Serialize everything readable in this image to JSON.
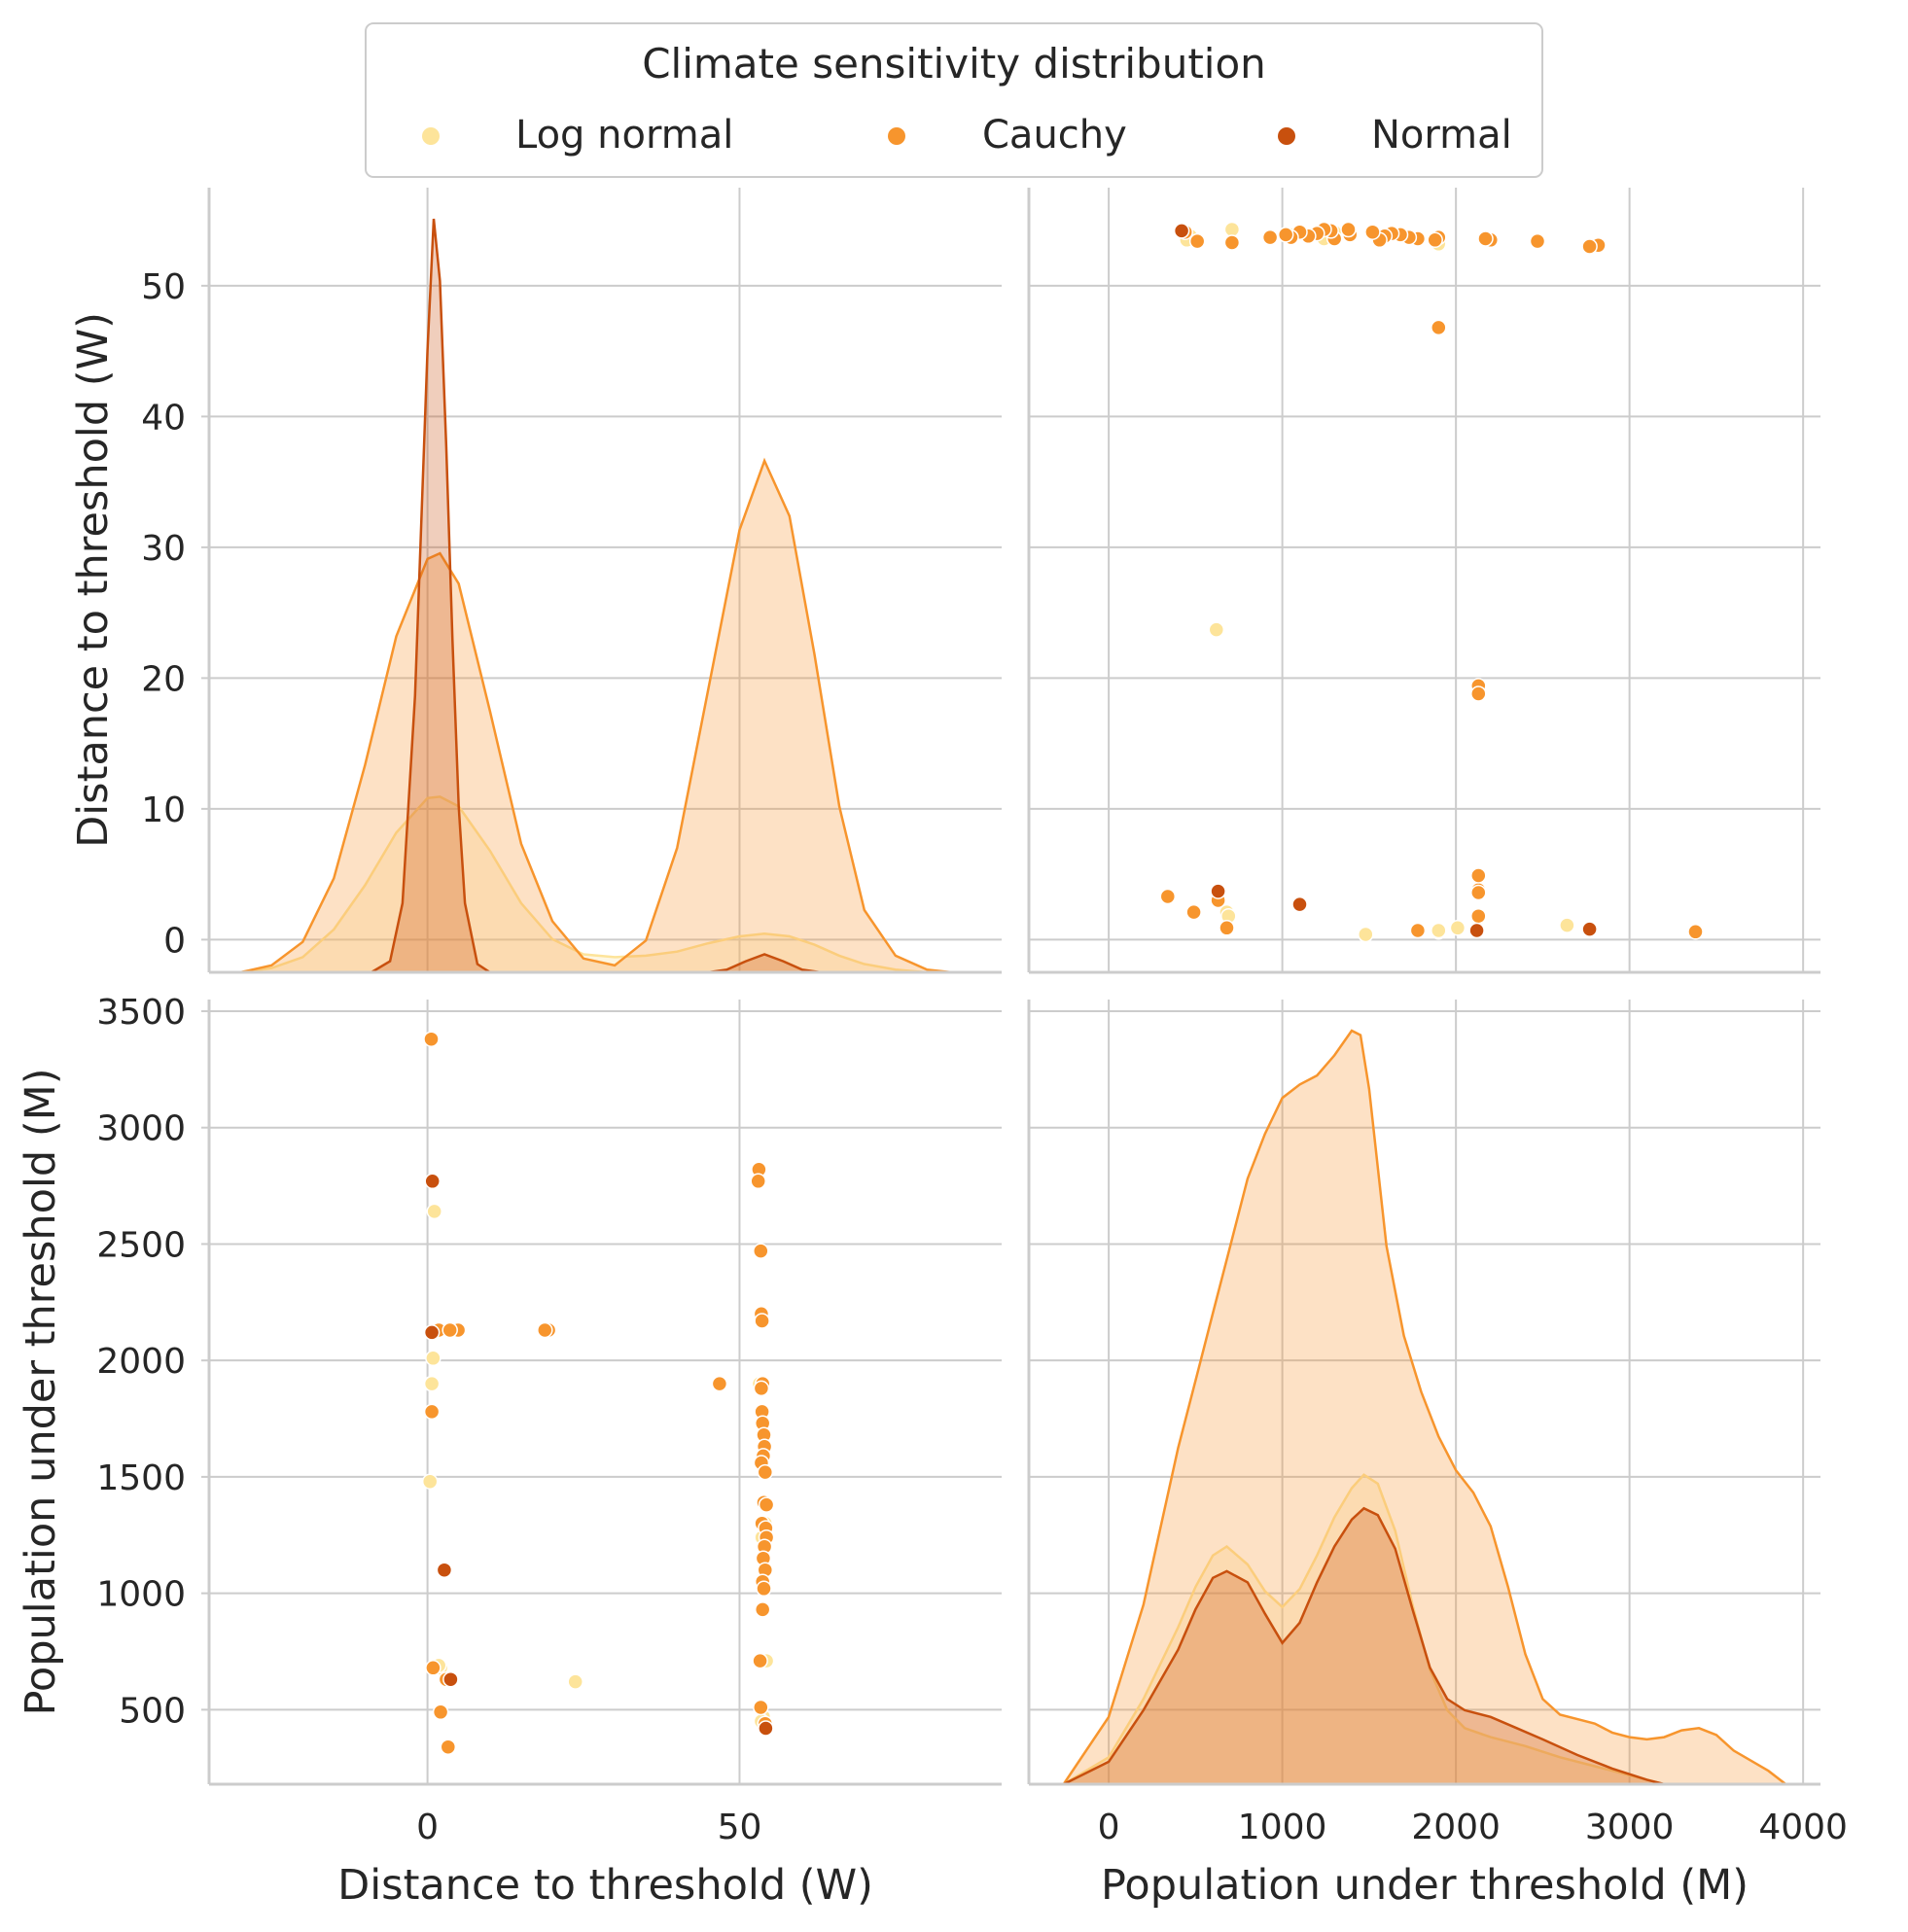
{
  "chart_data": {
    "type": "scatter",
    "kind": "pairplot",
    "legend": {
      "title": "Climate sensitivity distribution",
      "placement": "top-center",
      "entries": [
        "Log normal",
        "Cauchy",
        "Normal"
      ]
    },
    "series_colors": {
      "Log normal": "#fde49a",
      "Cauchy": "#f7952d",
      "Normal": "#c8500e"
    },
    "grid": true,
    "variables": [
      {
        "label": "Distance to threshold (W)",
        "range": [
          -35,
          92
        ],
        "ticks": [
          0,
          50
        ],
        "ticks_y": [
          0,
          10,
          20,
          30,
          40,
          50
        ],
        "y_range": [
          -2.5,
          57.5
        ]
      },
      {
        "label": "Population under threshold (M)",
        "range": [
          -460,
          4100
        ],
        "ticks": [
          0,
          1000,
          2000,
          3000,
          4000
        ],
        "ticks_y": [
          500,
          1000,
          1500,
          2000,
          2500,
          3000,
          3500
        ],
        "y_range": [
          180,
          3550
        ]
      }
    ],
    "points": {
      "Log normal": [
        [
          0.4,
          1480
        ],
        [
          0.9,
          2010
        ],
        [
          0.6,
          1900
        ],
        [
          1.1,
          2640
        ],
        [
          2.1,
          680
        ],
        [
          53.9,
          1040
        ],
        [
          54.3,
          710
        ],
        [
          53.2,
          1900
        ],
        [
          53.8,
          470
        ],
        [
          23.7,
          620
        ],
        [
          0.7,
          1900
        ],
        [
          53.6,
          1240
        ],
        [
          54.1,
          1300
        ],
        [
          53.5,
          450
        ],
        [
          1.8,
          690
        ]
      ],
      "Cauchy": [
        [
          0.6,
          3380
        ],
        [
          0.7,
          1780
        ],
        [
          0.9,
          680
        ],
        [
          2.1,
          490
        ],
        [
          3.3,
          340
        ],
        [
          1.8,
          2130
        ],
        [
          3.8,
          2130
        ],
        [
          4.9,
          2130
        ],
        [
          19.4,
          2130
        ],
        [
          18.8,
          2130
        ],
        [
          46.8,
          1900
        ],
        [
          53.1,
          2820
        ],
        [
          53.0,
          2770
        ],
        [
          53.4,
          2470
        ],
        [
          53.5,
          2200
        ],
        [
          53.6,
          2170
        ],
        [
          53.7,
          1900
        ],
        [
          53.5,
          1880
        ],
        [
          53.6,
          1780
        ],
        [
          53.7,
          1730
        ],
        [
          53.9,
          1680
        ],
        [
          54.0,
          1630
        ],
        [
          53.8,
          1590
        ],
        [
          53.5,
          1560
        ],
        [
          54.1,
          1520
        ],
        [
          53.9,
          1390
        ],
        [
          54.3,
          1380
        ],
        [
          53.6,
          1300
        ],
        [
          54.2,
          1280
        ],
        [
          54.3,
          1240
        ],
        [
          54.0,
          1200
        ],
        [
          53.8,
          1150
        ],
        [
          54.1,
          1100
        ],
        [
          53.7,
          1050
        ],
        [
          53.9,
          1020
        ],
        [
          53.7,
          930
        ],
        [
          53.3,
          710
        ],
        [
          53.4,
          510
        ],
        [
          54.1,
          440
        ],
        [
          3.0,
          630
        ],
        [
          3.6,
          2130
        ]
      ],
      "Normal": [
        [
          0.8,
          2770
        ],
        [
          0.7,
          2120
        ],
        [
          2.7,
          1100
        ],
        [
          3.7,
          630
        ],
        [
          54.2,
          420
        ]
      ]
    },
    "kde": {
      "Distance to threshold (W)": {
        "Log normal": [
          [
            -30,
            0
          ],
          [
            -25,
            0.3
          ],
          [
            -20,
            1.1
          ],
          [
            -15,
            3.1
          ],
          [
            -10,
            6.3
          ],
          [
            -5,
            10.1
          ],
          [
            0,
            12.6
          ],
          [
            2,
            12.7
          ],
          [
            5,
            12.0
          ],
          [
            10,
            8.8
          ],
          [
            15,
            5.0
          ],
          [
            20,
            2.4
          ],
          [
            25,
            1.3
          ],
          [
            30,
            1.1
          ],
          [
            35,
            1.2
          ],
          [
            40,
            1.5
          ],
          [
            45,
            2.1
          ],
          [
            50,
            2.6
          ],
          [
            54,
            2.8
          ],
          [
            58,
            2.6
          ],
          [
            62,
            2.0
          ],
          [
            66,
            1.2
          ],
          [
            70,
            0.6
          ],
          [
            75,
            0.2
          ],
          [
            80,
            0
          ]
        ],
        "Cauchy": [
          [
            -30,
            0
          ],
          [
            -25,
            0.5
          ],
          [
            -20,
            2.2
          ],
          [
            -15,
            6.8
          ],
          [
            -10,
            15.0
          ],
          [
            -5,
            24.3
          ],
          [
            0,
            29.9
          ],
          [
            2,
            30.3
          ],
          [
            5,
            28.1
          ],
          [
            10,
            18.9
          ],
          [
            15,
            9.3
          ],
          [
            20,
            3.7
          ],
          [
            25,
            1.0
          ],
          [
            30,
            0.5
          ],
          [
            35,
            2.3
          ],
          [
            40,
            9.0
          ],
          [
            45,
            20.5
          ],
          [
            50,
            32.0
          ],
          [
            54,
            37.0
          ],
          [
            58,
            33.0
          ],
          [
            62,
            23.0
          ],
          [
            66,
            12.0
          ],
          [
            70,
            4.5
          ],
          [
            75,
            1.2
          ],
          [
            80,
            0.2
          ],
          [
            84,
            0
          ]
        ],
        "Normal": [
          [
            -9,
            0
          ],
          [
            -6,
            0.8
          ],
          [
            -4,
            5.0
          ],
          [
            -2,
            20.0
          ],
          [
            0,
            45.0
          ],
          [
            1,
            54.5
          ],
          [
            2,
            50.0
          ],
          [
            3,
            38.0
          ],
          [
            4,
            24.0
          ],
          [
            5,
            12.0
          ],
          [
            6,
            5.0
          ],
          [
            8,
            0.6
          ],
          [
            10,
            0
          ],
          [
            45,
            0
          ],
          [
            48,
            0.2
          ],
          [
            51,
            0.8
          ],
          [
            54,
            1.3
          ],
          [
            57,
            0.8
          ],
          [
            60,
            0.2
          ],
          [
            63,
            0
          ]
        ]
      },
      "Population under threshold (M)": {
        "Log normal": [
          [
            -260,
            0
          ],
          [
            0,
            120
          ],
          [
            200,
            380
          ],
          [
            400,
            700
          ],
          [
            500,
            880
          ],
          [
            600,
            1020
          ],
          [
            680,
            1060
          ],
          [
            800,
            980
          ],
          [
            900,
            860
          ],
          [
            1000,
            790
          ],
          [
            1100,
            870
          ],
          [
            1200,
            1020
          ],
          [
            1300,
            1190
          ],
          [
            1400,
            1320
          ],
          [
            1470,
            1380
          ],
          [
            1550,
            1340
          ],
          [
            1650,
            1130
          ],
          [
            1750,
            800
          ],
          [
            1850,
            510
          ],
          [
            1950,
            330
          ],
          [
            2050,
            250
          ],
          [
            2200,
            210
          ],
          [
            2400,
            170
          ],
          [
            2600,
            120
          ],
          [
            2800,
            80
          ],
          [
            3000,
            40
          ],
          [
            3200,
            0
          ]
        ],
        "Cauchy": [
          [
            -260,
            0
          ],
          [
            0,
            300
          ],
          [
            200,
            800
          ],
          [
            400,
            1500
          ],
          [
            500,
            1800
          ],
          [
            600,
            2100
          ],
          [
            700,
            2400
          ],
          [
            800,
            2700
          ],
          [
            900,
            2900
          ],
          [
            1000,
            3060
          ],
          [
            1100,
            3120
          ],
          [
            1200,
            3160
          ],
          [
            1300,
            3250
          ],
          [
            1400,
            3360
          ],
          [
            1450,
            3340
          ],
          [
            1500,
            3100
          ],
          [
            1600,
            2400
          ],
          [
            1700,
            2000
          ],
          [
            1800,
            1750
          ],
          [
            1900,
            1550
          ],
          [
            2000,
            1400
          ],
          [
            2100,
            1300
          ],
          [
            2200,
            1150
          ],
          [
            2300,
            880
          ],
          [
            2400,
            580
          ],
          [
            2500,
            380
          ],
          [
            2600,
            310
          ],
          [
            2700,
            290
          ],
          [
            2800,
            270
          ],
          [
            2900,
            230
          ],
          [
            3000,
            210
          ],
          [
            3100,
            200
          ],
          [
            3200,
            210
          ],
          [
            3300,
            240
          ],
          [
            3400,
            250
          ],
          [
            3500,
            220
          ],
          [
            3600,
            150
          ],
          [
            3800,
            60
          ],
          [
            3900,
            0
          ]
        ],
        "Normal": [
          [
            -260,
            0
          ],
          [
            0,
            100
          ],
          [
            200,
            330
          ],
          [
            400,
            600
          ],
          [
            500,
            780
          ],
          [
            600,
            920
          ],
          [
            680,
            950
          ],
          [
            800,
            900
          ],
          [
            900,
            760
          ],
          [
            1000,
            630
          ],
          [
            1100,
            720
          ],
          [
            1200,
            900
          ],
          [
            1300,
            1060
          ],
          [
            1400,
            1180
          ],
          [
            1470,
            1230
          ],
          [
            1550,
            1200
          ],
          [
            1650,
            1050
          ],
          [
            1750,
            780
          ],
          [
            1850,
            520
          ],
          [
            1950,
            380
          ],
          [
            2050,
            330
          ],
          [
            2200,
            300
          ],
          [
            2350,
            250
          ],
          [
            2500,
            200
          ],
          [
            2700,
            130
          ],
          [
            2900,
            70
          ],
          [
            3100,
            20
          ],
          [
            3200,
            0
          ]
        ]
      }
    }
  }
}
